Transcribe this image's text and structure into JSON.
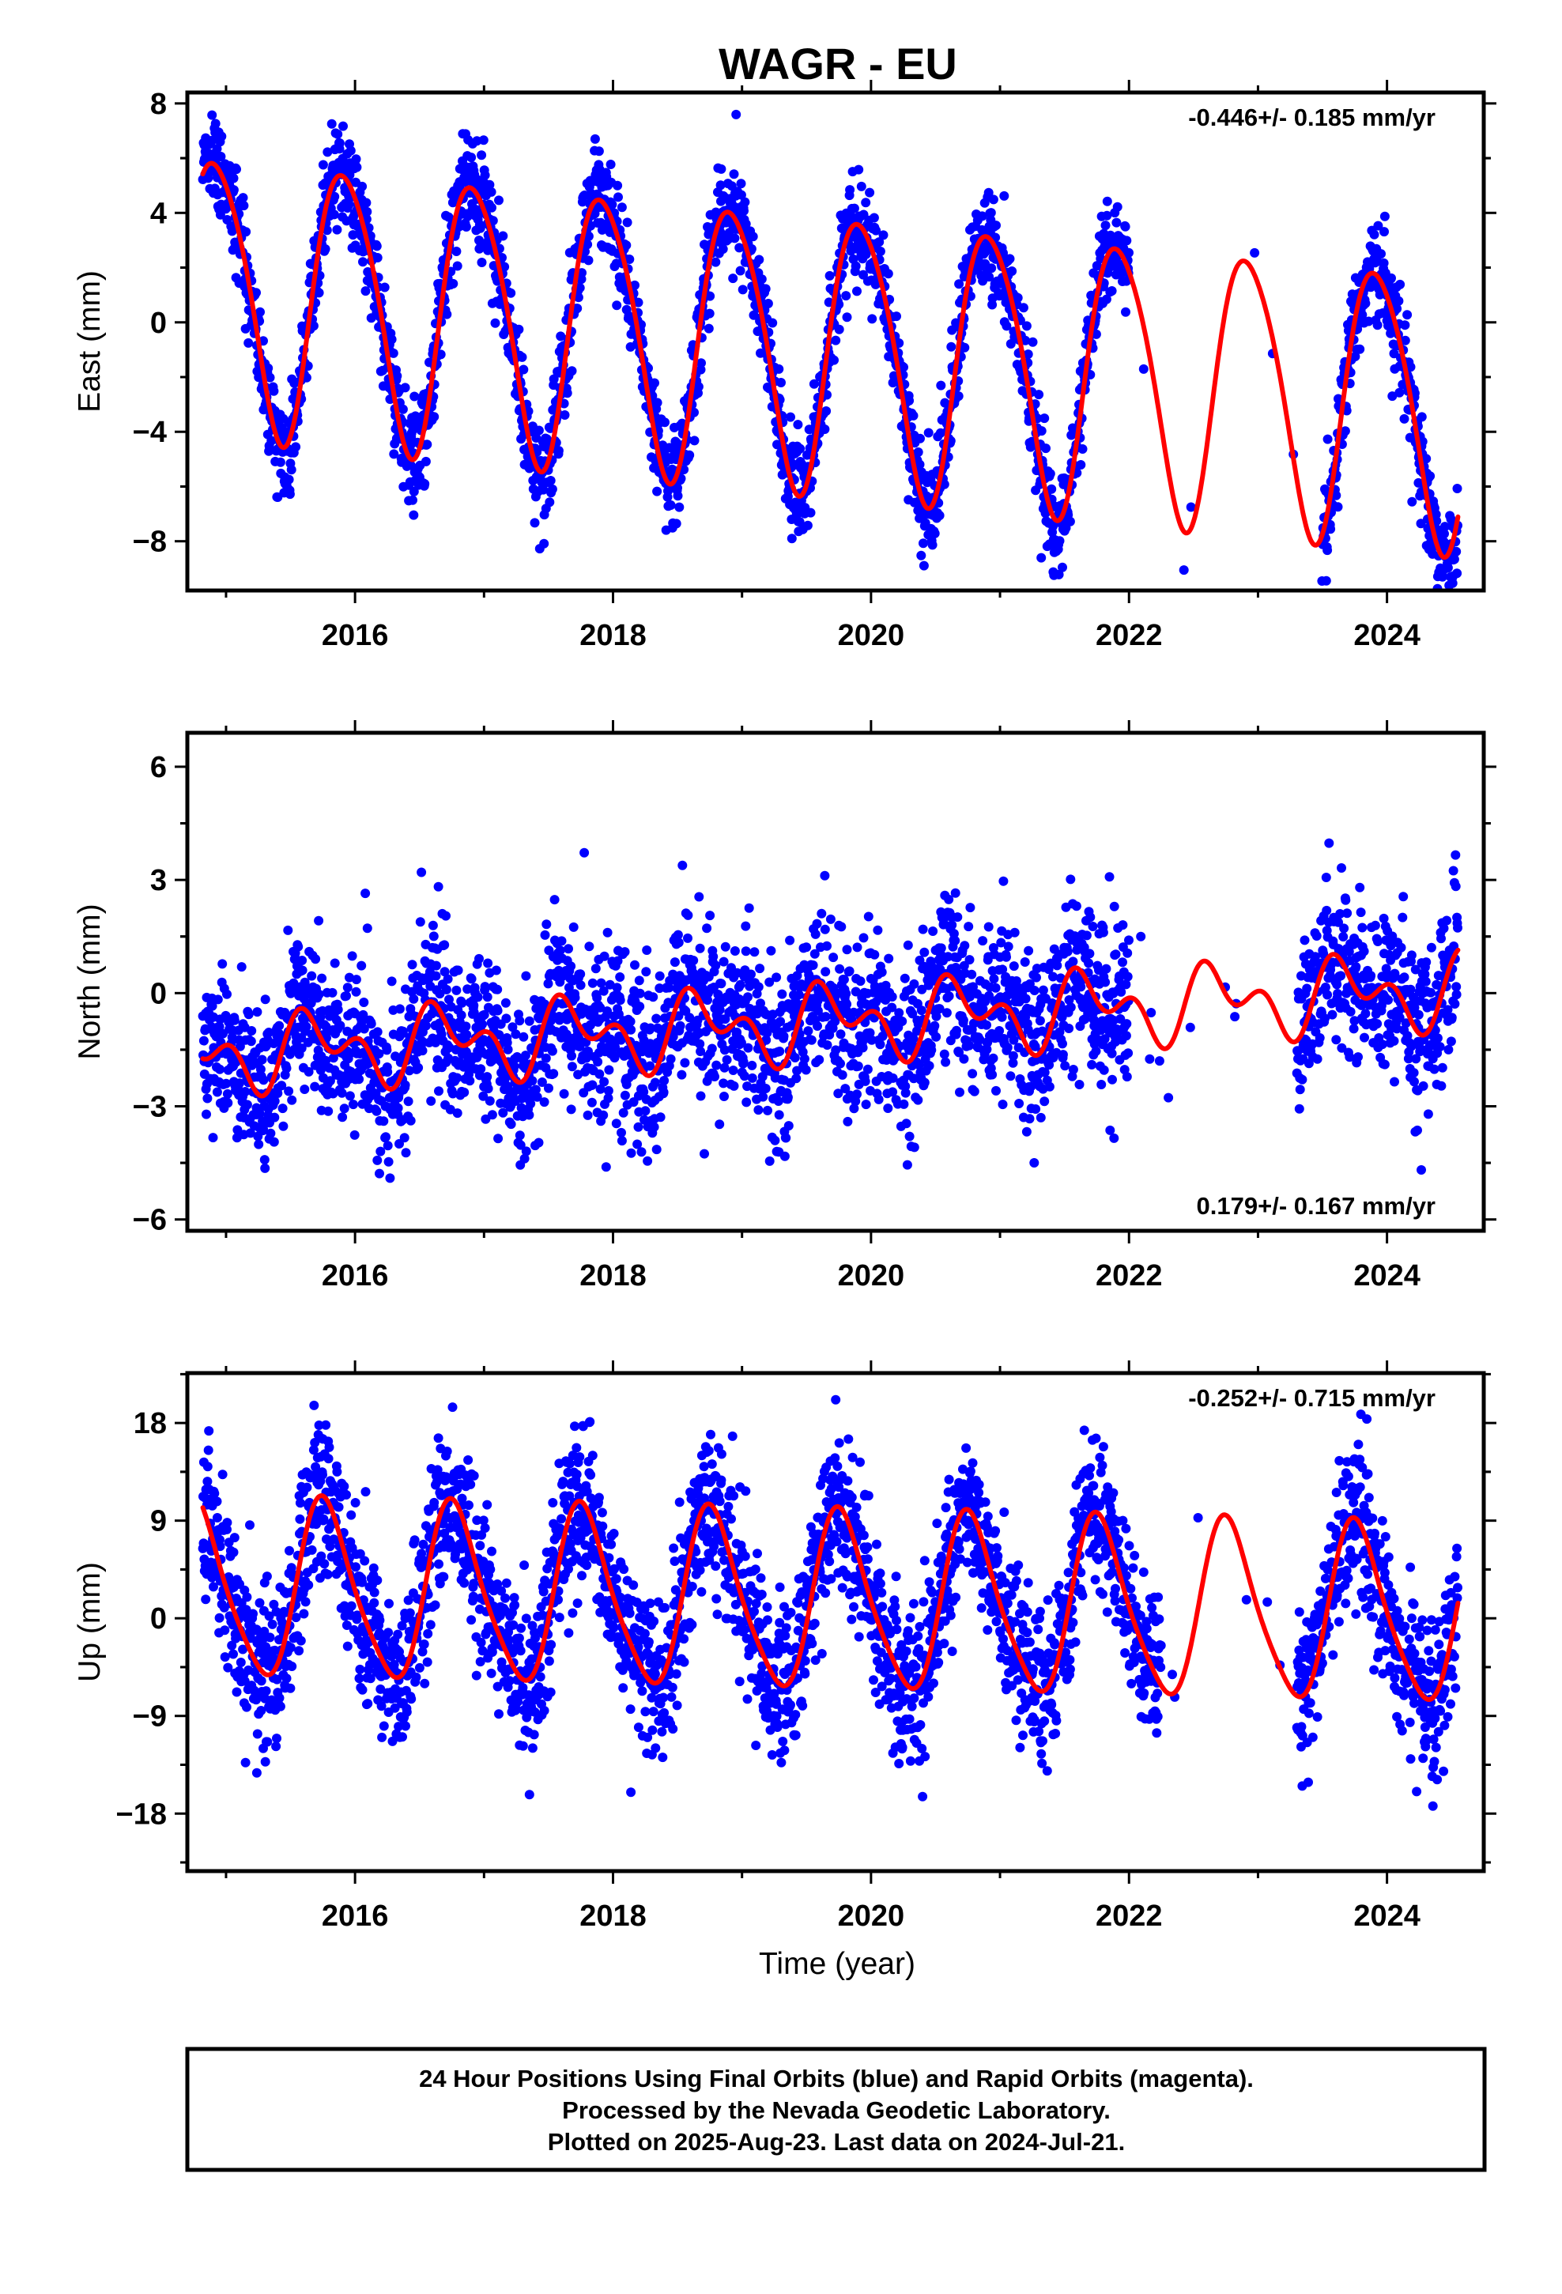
{
  "title": "WAGR - EU",
  "xlabel": "Time (year)",
  "footer": {
    "line1": "24 Hour Positions Using Final Orbits (blue) and Rapid Orbits (magenta).",
    "line2": "Processed by the Nevada Geodetic Laboratory.",
    "line3": "Plotted on 2025-Aug-23. Last data on 2024-Jul-21."
  },
  "colors": {
    "points": "#0000ff",
    "fit": "#ff0000",
    "frame": "#000000"
  },
  "chart_data": [
    {
      "type": "scatter",
      "component": "east",
      "ylabel": "East (mm)",
      "rate_label": "-0.446+/- 0.185 mm/yr",
      "rate_position": "top-right",
      "xlim": [
        2014.7,
        2024.75
      ],
      "ylim": [
        -9.8,
        8.4
      ],
      "xticks": [
        2016,
        2018,
        2020,
        2022,
        2024
      ],
      "yticks": [
        -8,
        -4,
        0,
        4,
        8
      ],
      "ytick_labels": [
        "−8",
        "−4",
        "0",
        "4",
        "8"
      ],
      "fit": {
        "rate": -0.446,
        "offset": -0.9,
        "amp": 5.0,
        "phase": 2.04,
        "amp2": 0.6,
        "phase2": 4.9
      },
      "noise": 0.9,
      "gaps": [
        [
          2022.0,
          2023.5
        ]
      ],
      "data_start": 2014.82,
      "data_end": 2024.55,
      "series": [
        {
          "name": "Final Orbits (blue)",
          "role": "points"
        },
        {
          "name": "fit",
          "role": "fit-line"
        }
      ]
    },
    {
      "type": "scatter",
      "component": "north",
      "ylabel": "North (mm)",
      "rate_label": "0.179+/- 0.167 mm/yr",
      "rate_position": "bottom-right",
      "xlim": [
        2014.7,
        2024.75
      ],
      "ylim": [
        -6.3,
        6.9
      ],
      "xticks": [
        2016,
        2018,
        2020,
        2022,
        2024
      ],
      "yticks": [
        -6,
        -3,
        0,
        3,
        6
      ],
      "ytick_labels": [
        "−6",
        "−3",
        "0",
        "3",
        "6"
      ],
      "fit": {
        "rate": 0.179,
        "offset": -0.8,
        "amp": 0.7,
        "phase": 3.5,
        "amp2": 0.6,
        "phase2": 0.9
      },
      "noise": 1.1,
      "gaps": [
        [
          2022.0,
          2023.3
        ]
      ],
      "data_start": 2014.82,
      "data_end": 2024.55,
      "series": [
        {
          "name": "Final Orbits (blue)",
          "role": "points"
        },
        {
          "name": "fit",
          "role": "fit-line"
        }
      ]
    },
    {
      "type": "scatter",
      "component": "up",
      "ylabel": "Up (mm)",
      "rate_label": "-0.252+/- 0.715 mm/yr",
      "rate_position": "top-right",
      "xlim": [
        2014.7,
        2024.75
      ],
      "ylim": [
        -23.3,
        22.6
      ],
      "xticks": [
        2016,
        2018,
        2020,
        2022,
        2024
      ],
      "yticks": [
        -18,
        -9,
        0,
        9,
        18
      ],
      "ytick_labels": [
        "−18",
        "−9",
        "0",
        "9",
        "18"
      ],
      "fit": {
        "rate": -0.252,
        "offset": 1.5,
        "amp": 8.0,
        "phase": 3.0,
        "amp2": 1.3,
        "phase2": 5.5
      },
      "noise": 3.6,
      "gaps": [
        [
          2022.25,
          2023.3
        ]
      ],
      "data_start": 2014.82,
      "data_end": 2024.55,
      "series": [
        {
          "name": "Final Orbits (blue)",
          "role": "points"
        },
        {
          "name": "fit",
          "role": "fit-line"
        }
      ]
    }
  ]
}
